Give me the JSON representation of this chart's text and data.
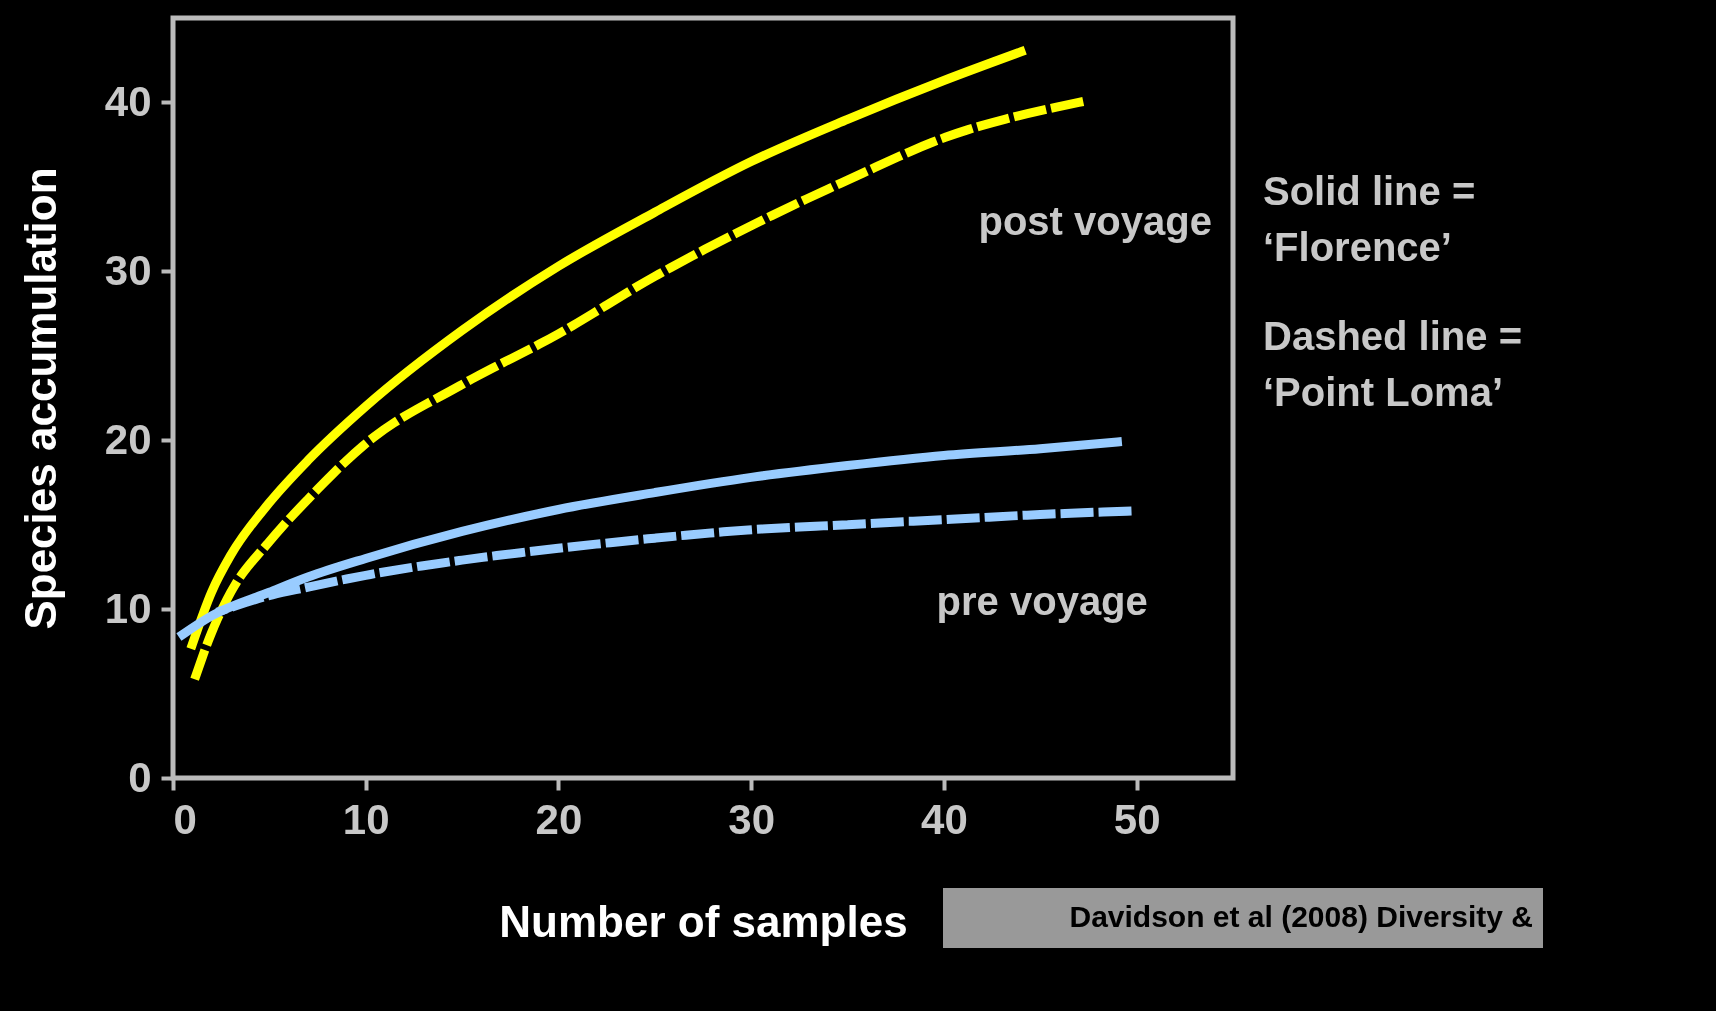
{
  "chart_data": {
    "type": "line",
    "xlabel": "Number of samples",
    "ylabel": "Species accumulation",
    "xlim": [
      0,
      55
    ],
    "ylim": [
      0,
      45
    ],
    "xticks": [
      0,
      10,
      20,
      30,
      40,
      50
    ],
    "yticks": [
      0,
      10,
      20,
      30,
      40
    ],
    "grid": false,
    "marker": "none",
    "series": [
      {
        "color": "#ffff00",
        "line_style": "solid",
        "x": [
          1,
          2,
          3,
          5,
          7,
          10,
          15,
          20,
          25,
          30,
          35,
          40,
          44
        ],
        "values": [
          7.9,
          11,
          13.2,
          16.3,
          18.8,
          22,
          26.5,
          30.3,
          33.5,
          36.5,
          39,
          41.3,
          43
        ]
      },
      {
        "color": "#ffff00",
        "line_style": "dashed",
        "x": [
          1.2,
          2,
          3,
          5,
          7,
          10,
          15,
          20,
          25,
          30,
          35,
          40,
          47
        ],
        "values": [
          6.1,
          8.6,
          11,
          14,
          16.5,
          19.8,
          23.3,
          26.3,
          29.7,
          32.7,
          35.4,
          37.9,
          40
        ]
      },
      {
        "color": "#99ccff",
        "line_style": "solid",
        "x": [
          0.5,
          2,
          5,
          7,
          10,
          15,
          20,
          25,
          30,
          35,
          40,
          45,
          49
        ],
        "values": [
          8.5,
          9.6,
          11,
          11.9,
          13,
          14.6,
          15.9,
          16.9,
          17.8,
          18.5,
          19.1,
          19.5,
          19.9
        ]
      },
      {
        "color": "#99ccff",
        "line_style": "dashed",
        "x": [
          2.5,
          5,
          7,
          10,
          15,
          20,
          25,
          30,
          35,
          40,
          45,
          49.5
        ],
        "values": [
          9.9,
          10.8,
          11.3,
          12,
          12.9,
          13.6,
          14.2,
          14.7,
          15,
          15.3,
          15.6,
          15.8
        ]
      }
    ],
    "annotations": [
      "post voyage",
      "pre voyage",
      "Solid line =\n‘Florence’",
      "Dashed line =\n‘Point Loma’",
      "Davidson et al (2008) Diversity &"
    ]
  }
}
